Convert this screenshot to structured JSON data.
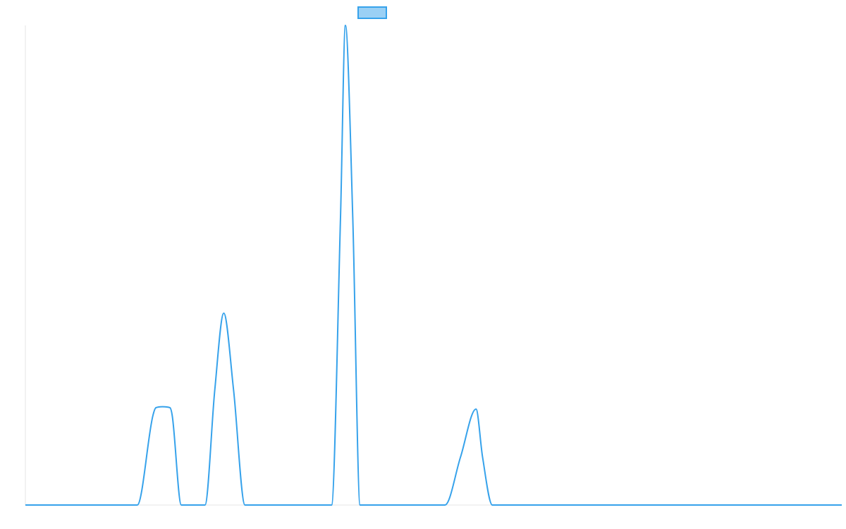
{
  "colors": {
    "series": "#36a2eb",
    "series_fill": "#9ad0f5",
    "axis": "#e6e6e6",
    "background": "#ffffff"
  },
  "chart_data": {
    "type": "line",
    "title": "",
    "xlabel": "",
    "ylabel": "",
    "xlim": [
      0,
      100
    ],
    "ylim": [
      0,
      100
    ],
    "grid": false,
    "legend": "top-center",
    "series": [
      {
        "x": [
          0,
          13.7,
          15.6,
          16.0,
          16.8,
          17.7,
          18.0,
          19.1,
          22.0,
          23.2,
          24.3,
          25.5,
          26.9,
          27.7,
          37.5,
          38.6,
          39.2,
          40.1,
          41.0,
          42.0,
          51.4,
          53.3,
          55.2,
          56.0,
          57.2,
          58.1,
          100
        ],
        "y": [
          0,
          0,
          18.5,
          20.3,
          20.5,
          20.3,
          18.5,
          0,
          0,
          24.0,
          40.0,
          24.0,
          0,
          0,
          0,
          60.0,
          100,
          60.0,
          0,
          0,
          0,
          10.0,
          20.0,
          10.0,
          0,
          0,
          0
        ]
      }
    ]
  }
}
